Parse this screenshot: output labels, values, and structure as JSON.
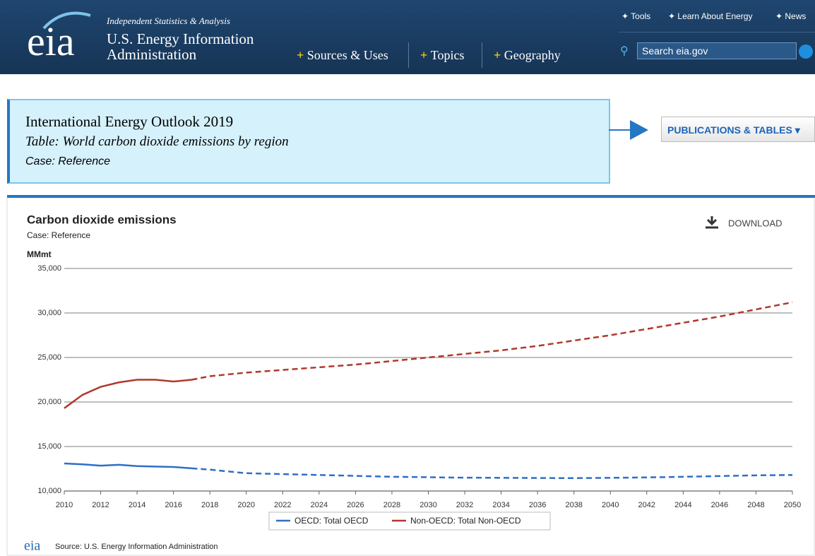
{
  "header": {
    "logo": "eia",
    "tagline": "Independent Statistics & Analysis",
    "org_lines": [
      "U.S. Energy Information",
      "Administration"
    ],
    "nav": [
      "Sources & Uses",
      "Topics",
      "Geography"
    ],
    "top_links": [
      "Tools",
      "Learn About Energy",
      "News"
    ],
    "search_placeholder": "Search eia.gov"
  },
  "banner": {
    "title": "International Energy Outlook 2019",
    "table": "Table: World carbon dioxide emissions by region",
    "case": "Case: Reference",
    "button": "PUBLICATIONS & TABLES"
  },
  "chart_data": {
    "type": "line",
    "title": "Carbon dioxide emissions",
    "subtitle": "Case: Reference",
    "y_label": "MMmt",
    "download": "DOWNLOAD",
    "source": "Source: U.S. Energy Information Administration",
    "source_logo": "eia",
    "x": [
      2010,
      2011,
      2012,
      2013,
      2014,
      2015,
      2016,
      2017,
      2018,
      2019,
      2020,
      2021,
      2022,
      2023,
      2024,
      2025,
      2026,
      2027,
      2028,
      2029,
      2030,
      2031,
      2032,
      2033,
      2034,
      2035,
      2036,
      2037,
      2038,
      2039,
      2040,
      2041,
      2042,
      2043,
      2044,
      2045,
      2046,
      2047,
      2048,
      2049,
      2050
    ],
    "xlim": [
      2010,
      2050
    ],
    "xticks": [
      2010,
      2012,
      2014,
      2016,
      2018,
      2020,
      2022,
      2024,
      2026,
      2028,
      2030,
      2032,
      2034,
      2036,
      2038,
      2040,
      2042,
      2044,
      2046,
      2048,
      2050
    ],
    "ylim": [
      10000,
      35000
    ],
    "yticks": [
      {
        "value": 10000,
        "label": "10,000"
      },
      {
        "value": 15000,
        "label": "15,000"
      },
      {
        "value": 20000,
        "label": "20,000"
      },
      {
        "value": 25000,
        "label": "25,000"
      },
      {
        "value": 30000,
        "label": "30,000"
      },
      {
        "value": 35000,
        "label": "35,000"
      }
    ],
    "grid": true,
    "solid_until": 2017,
    "series": [
      {
        "name": "OECD: Total OECD",
        "color": "#2f6fc7",
        "values": [
          13100,
          13000,
          12850,
          12950,
          12800,
          12750,
          12700,
          12550,
          12400,
          12200,
          12000,
          11950,
          11900,
          11850,
          11800,
          11750,
          11700,
          11650,
          11600,
          11580,
          11550,
          11520,
          11500,
          11490,
          11480,
          11470,
          11460,
          11450,
          11450,
          11460,
          11480,
          11500,
          11530,
          11560,
          11600,
          11640,
          11680,
          11720,
          11760,
          11780,
          11800
        ]
      },
      {
        "name": "Non-OECD: Total Non-OECD",
        "color": "#b0382c",
        "values": [
          19300,
          20800,
          21700,
          22200,
          22500,
          22500,
          22300,
          22500,
          22900,
          23100,
          23300,
          23450,
          23600,
          23750,
          23900,
          24050,
          24200,
          24400,
          24600,
          24800,
          25000,
          25200,
          25400,
          25600,
          25800,
          26050,
          26300,
          26600,
          26900,
          27200,
          27500,
          27850,
          28200,
          28550,
          28900,
          29250,
          29600,
          30000,
          30400,
          30800,
          31200
        ]
      }
    ]
  }
}
